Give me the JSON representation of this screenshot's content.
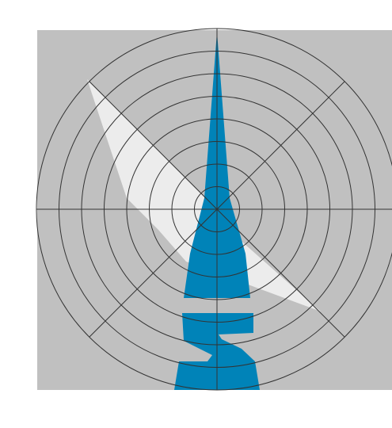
{
  "figure": {
    "kind": "polar-grid-graphic",
    "rings": 8,
    "spokes": 8,
    "colors": {
      "page": "#ffffff",
      "panel": "#c0c0c0",
      "grid": "#333333",
      "light_shape": "#ececec",
      "blue_shape": "#0083b8"
    },
    "shapes": [
      "light-diagonal-wedge",
      "blue-vertical-spike"
    ]
  }
}
